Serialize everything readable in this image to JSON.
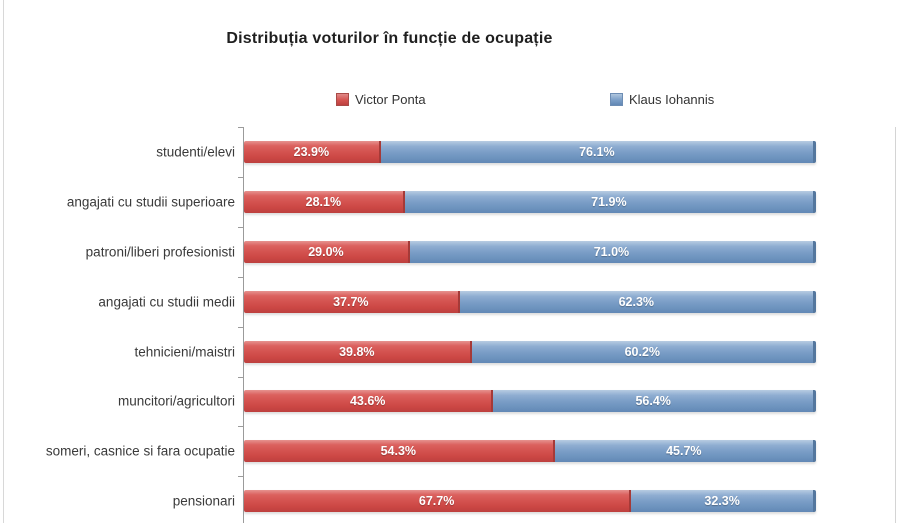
{
  "chart_data": {
    "type": "bar",
    "variant": "horizontal-stacked-100",
    "title": "Distribuția voturilor în funcție de ocupație",
    "categories": [
      "studenti/elevi",
      "angajati cu studii superioare",
      "patroni/liberi profesionisti",
      "angajati cu studii medii",
      "tehnicieni/maistri",
      "muncitori/agricultori",
      "someri, casnice si fara ocupatie",
      "pensionari"
    ],
    "series": [
      {
        "name": "Victor Ponta",
        "color": "#D45350",
        "values": [
          23.9,
          28.1,
          29.0,
          37.7,
          39.8,
          43.6,
          54.3,
          67.7
        ]
      },
      {
        "name": "Klaus Iohannis",
        "color": "#7B9EC7",
        "values": [
          76.1,
          71.9,
          71.0,
          62.3,
          60.2,
          56.4,
          45.7,
          32.3
        ]
      }
    ],
    "data_label_format": "one-decimal-percent",
    "xlabel": "",
    "ylabel": "",
    "xlim": [
      0,
      114
    ],
    "grid": false,
    "legend_position": "top"
  },
  "legend": {
    "ponta_label": "Victor Ponta",
    "iohannis_label": "Klaus Iohannis"
  }
}
